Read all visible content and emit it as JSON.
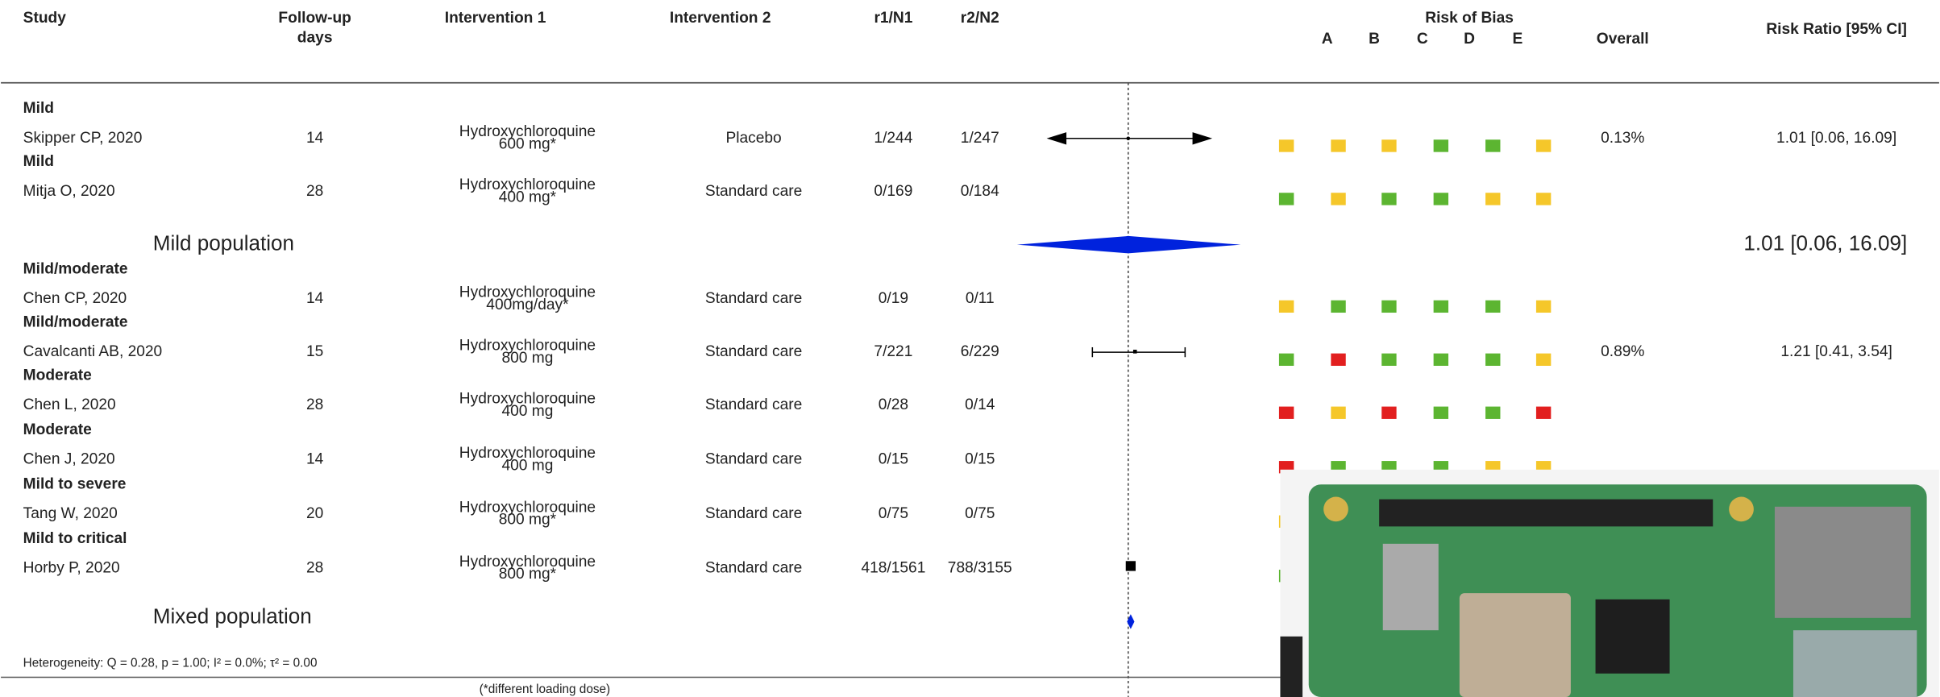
{
  "header": {
    "study": "Study",
    "follow_up": [
      "Follow-up",
      "days"
    ],
    "intervention1": "Intervention 1",
    "intervention2": "Intervention 2",
    "r1n1": "r1/N1",
    "r2n2": "r2/N2",
    "risk_of_bias": "Risk of Bias",
    "domains": [
      "A",
      "B",
      "C",
      "D",
      "E"
    ],
    "overall": "Overall",
    "risk_ratio": "Risk Ratio [95% CI]"
  },
  "rows": [
    {
      "group": "Mild",
      "study": "Skipper CP, 2020",
      "days": "14",
      "intervention1": [
        "Hydroxychloroquine",
        "600 mg*"
      ],
      "intervention2": "Placebo",
      "r1n1": "1/244",
      "r2n2": "1/247",
      "bias": [
        "yellow",
        "yellow",
        "yellow",
        "green",
        "green",
        "yellow"
      ],
      "weight": "0.13%",
      "rr": "1.01 [0.06, 16.09]"
    },
    {
      "group": "Mild",
      "study": "Mitja O, 2020",
      "days": "28",
      "intervention1": [
        "Hydroxychloroquine",
        "400 mg*"
      ],
      "intervention2": "Standard care",
      "r1n1": "0/169",
      "r2n2": "0/184",
      "bias": [
        "green",
        "yellow",
        "green",
        "green",
        "yellow",
        "yellow"
      ]
    },
    {
      "group": "Mild/moderate",
      "study": "Chen CP, 2020",
      "days": "14",
      "intervention1": [
        "Hydroxychloroquine",
        "400mg/day*"
      ],
      "intervention2": "Standard care",
      "r1n1": "0/19",
      "r2n2": "0/11",
      "bias": [
        "yellow",
        "green",
        "green",
        "green",
        "green",
        "yellow"
      ]
    },
    {
      "group": "Mild/moderate",
      "study": "Cavalcanti AB, 2020",
      "days": "15",
      "intervention1": [
        "Hydroxychloroquine",
        "800 mg"
      ],
      "intervention2": "Standard care",
      "r1n1": "7/221",
      "r2n2": "6/229",
      "bias": [
        "green",
        "red",
        "green",
        "green",
        "green",
        "yellow"
      ],
      "weight": "0.89%",
      "rr": "1.21 [0.41,  3.54]"
    },
    {
      "group": "Moderate",
      "study": "Chen L, 2020",
      "days": "28",
      "intervention1": [
        "Hydroxychloroquine",
        "400 mg"
      ],
      "intervention2": "Standard care",
      "r1n1": "0/28",
      "r2n2": "0/14",
      "bias": [
        "red",
        "yellow",
        "red",
        "green",
        "green",
        "red"
      ]
    },
    {
      "group": "Moderate",
      "study": "Chen J, 2020",
      "days": "14",
      "intervention1": [
        "Hydroxychloroquine",
        "400 mg"
      ],
      "intervention2": "Standard care",
      "r1n1": "0/15",
      "r2n2": "0/15",
      "bias": [
        "red",
        "green",
        "green",
        "green",
        "yellow",
        "yellow"
      ]
    },
    {
      "group": "Mild to severe",
      "study": "Tang W, 2020",
      "days": "20",
      "intervention1": [
        "Hydroxychloroquine",
        "800 mg*"
      ],
      "intervention2": "Standard care",
      "r1n1": "0/75",
      "r2n2": "0/75",
      "bias": [
        "yellow"
      ]
    },
    {
      "group": "Mild to critical",
      "study": "Horby P, 2020",
      "days": "28",
      "intervention1": [
        "Hydroxychloroquine",
        "800 mg*"
      ],
      "intervention2": "Standard care",
      "r1n1": "418/1561",
      "r2n2": "788/3155",
      "bias": [
        "green"
      ]
    }
  ],
  "subtotals": [
    {
      "label": "Mild population",
      "rr": "1.01 [0.06, 16.09]"
    },
    {
      "label": "Mixed population"
    }
  ],
  "heterogeneity": "Heterogeneity: Q = 0.28, p = 1.00; I² = 0.0%; τ² = 0.00",
  "footnote": "(*different loading dose)"
}
